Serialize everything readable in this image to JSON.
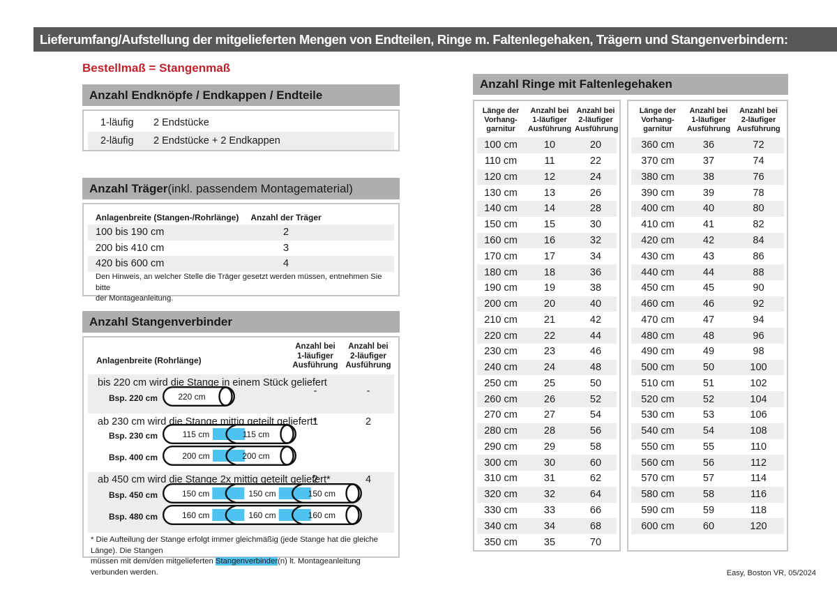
{
  "colors": {
    "topbar_bg": "#58585a",
    "bar_bg": "#aeaeae",
    "stripe": "#ededed",
    "accent_blue": "#4ec3f0",
    "brand_red": "#c0222b",
    "box_border": "#c6c6c6"
  },
  "header": {
    "title": "Lieferumfang/Aufstellung der mitgelieferten Mengen von Endteilen, Ringe m. Faltenlegehaken, Trägern und Stangenverbindern:"
  },
  "subtitle": "Bestellmaß = Stangenmaß",
  "footer": "Easy, Boston VR, 05/2024",
  "endteile": {
    "title": "Anzahl Endknöpfe / Endkappen / Endteile",
    "rows": [
      {
        "label": "1-läufig",
        "value": "2 Endstücke"
      },
      {
        "label": "2-läufig",
        "value": "2 Endstücke + 2 Endkappen"
      }
    ]
  },
  "traeger": {
    "title_bold": "Anzahl Träger",
    "title_rest": " (inkl. passendem Montagematerial)",
    "col_width": "Anlagenbreite (Stangen-/Rohrlänge)",
    "col_count": "Anzahl der Träger",
    "rows": [
      {
        "label": "100 bis 190 cm",
        "value": "2"
      },
      {
        "label": "200 bis 410 cm",
        "value": "3"
      },
      {
        "label": "420 bis 600 cm",
        "value": "4"
      }
    ],
    "note": "Den Hinweis, an welcher Stelle die Träger gesetzt werden müssen, entnehmen Sie bitte\nder Montageanleitung."
  },
  "verbinder": {
    "title": "Anzahl Stangenverbinder",
    "col_width": "Anlagenbreite (Rohrlänge)",
    "col_1l": "Anzahl bei\n1-läufiger\nAusführung",
    "col_2l": "Anzahl bei\n2-läufiger\nAusführung",
    "rows": [
      {
        "text": "bis 220 cm wird die Stange in einem Stück geliefert",
        "v1": "-",
        "v2": "-",
        "examples": [
          {
            "label": "Bsp. 220 cm",
            "segments": [
              "220 cm"
            ]
          }
        ]
      },
      {
        "text": "ab 230 cm wird die Stange mittig geteilt geliefert*",
        "v1": "1",
        "v2": "2",
        "examples": [
          {
            "label": "Bsp. 230 cm",
            "segments": [
              "115 cm",
              "115 cm"
            ]
          },
          {
            "label": "Bsp. 400 cm",
            "segments": [
              "200 cm",
              "200 cm"
            ]
          }
        ]
      },
      {
        "text": "ab 450 cm wird die Stange 2x mittig geteilt geliefert*",
        "v1": "2",
        "v2": "4",
        "examples": [
          {
            "label": "Bsp. 450 cm",
            "segments": [
              "150 cm",
              "150 cm",
              "150 cm"
            ]
          },
          {
            "label": "Bsp. 480 cm",
            "segments": [
              "160 cm",
              "160 cm",
              "160 cm"
            ]
          }
        ]
      }
    ],
    "footnote": [
      "* Die Aufteilung der Stange erfolgt immer gleichmäßig (jede Stange hat die gleiche Länge). Die Stangen\nmüssen mit dem/den mitgelieferten ",
      "Stangenverbinder",
      "(n) lt. Montageanleitung verbunden werden."
    ]
  },
  "rings": {
    "title": "Anzahl Ringe mit Faltenlegehaken",
    "columns": [
      "Länge der\nVorhang-\ngarnitur",
      "Anzahl bei\n1-läufiger\nAusführung",
      "Anzahl bei\n2-läufiger\nAusführung"
    ],
    "table1": [
      [
        "100 cm",
        "10",
        "20"
      ],
      [
        "110 cm",
        "11",
        "22"
      ],
      [
        "120 cm",
        "12",
        "24"
      ],
      [
        "130 cm",
        "13",
        "26"
      ],
      [
        "140 cm",
        "14",
        "28"
      ],
      [
        "150 cm",
        "15",
        "30"
      ],
      [
        "160 cm",
        "16",
        "32"
      ],
      [
        "170 cm",
        "17",
        "34"
      ],
      [
        "180 cm",
        "18",
        "36"
      ],
      [
        "190 cm",
        "19",
        "38"
      ],
      [
        "200 cm",
        "20",
        "40"
      ],
      [
        "210 cm",
        "21",
        "42"
      ],
      [
        "220 cm",
        "22",
        "44"
      ],
      [
        "230 cm",
        "23",
        "46"
      ],
      [
        "240 cm",
        "24",
        "48"
      ],
      [
        "250 cm",
        "25",
        "50"
      ],
      [
        "260 cm",
        "26",
        "52"
      ],
      [
        "270 cm",
        "27",
        "54"
      ],
      [
        "280 cm",
        "28",
        "56"
      ],
      [
        "290 cm",
        "29",
        "58"
      ],
      [
        "300 cm",
        "30",
        "60"
      ],
      [
        "310 cm",
        "31",
        "62"
      ],
      [
        "320 cm",
        "32",
        "64"
      ],
      [
        "330 cm",
        "33",
        "66"
      ],
      [
        "340 cm",
        "34",
        "68"
      ],
      [
        "350 cm",
        "35",
        "70"
      ]
    ],
    "table2": [
      [
        "360 cm",
        "36",
        "72"
      ],
      [
        "370 cm",
        "37",
        "74"
      ],
      [
        "380 cm",
        "38",
        "76"
      ],
      [
        "390 cm",
        "39",
        "78"
      ],
      [
        "400 cm",
        "40",
        "80"
      ],
      [
        "410 cm",
        "41",
        "82"
      ],
      [
        "420 cm",
        "42",
        "84"
      ],
      [
        "430 cm",
        "43",
        "86"
      ],
      [
        "440 cm",
        "44",
        "88"
      ],
      [
        "450 cm",
        "45",
        "90"
      ],
      [
        "460 cm",
        "46",
        "92"
      ],
      [
        "470 cm",
        "47",
        "94"
      ],
      [
        "480 cm",
        "48",
        "96"
      ],
      [
        "490 cm",
        "49",
        "98"
      ],
      [
        "500 cm",
        "50",
        "100"
      ],
      [
        "510 cm",
        "51",
        "102"
      ],
      [
        "520 cm",
        "52",
        "104"
      ],
      [
        "530 cm",
        "53",
        "106"
      ],
      [
        "540 cm",
        "54",
        "108"
      ],
      [
        "550 cm",
        "55",
        "110"
      ],
      [
        "560 cm",
        "56",
        "112"
      ],
      [
        "570 cm",
        "57",
        "114"
      ],
      [
        "580 cm",
        "58",
        "116"
      ],
      [
        "590 cm",
        "59",
        "118"
      ],
      [
        "600 cm",
        "60",
        "120"
      ]
    ]
  }
}
